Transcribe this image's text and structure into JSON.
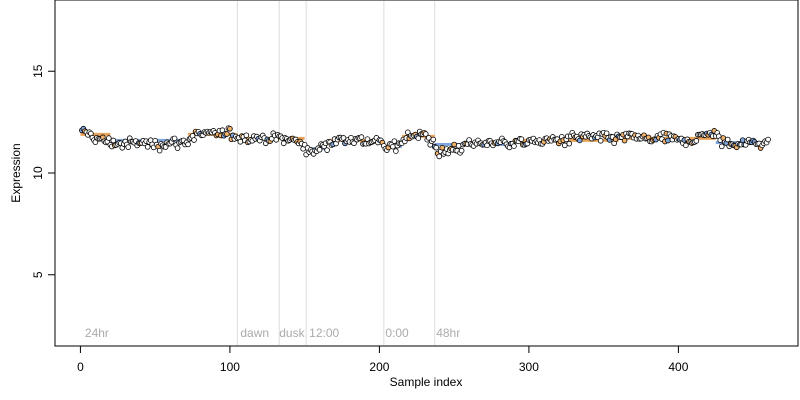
{
  "chart_data": {
    "type": "scatter",
    "xlabel": "Sample index",
    "ylabel": "Expression",
    "xlim": [
      -17,
      480
    ],
    "ylim": [
      1.5,
      18.5
    ],
    "x_ticks": [
      0,
      100,
      200,
      300,
      400
    ],
    "y_ticks": [
      5,
      10,
      15
    ],
    "grid": false,
    "legend": "none",
    "colors": {
      "point_fill_light": "#f4b36b",
      "point_fill_dark": "#7fa6dc",
      "point_fill_default": "#ffffff",
      "point_stroke": "#000000",
      "fit_line_light": "#e8a35a",
      "fit_line_dark": "#7fa6dc",
      "divider": "#dddddd",
      "phase_label": "#aaaaaa"
    },
    "phase_dividers": [
      105,
      133,
      151,
      203,
      237
    ],
    "phase_labels": [
      {
        "text": "24hr",
        "x": 3
      },
      {
        "text": "dawn",
        "x": 107
      },
      {
        "text": "dusk",
        "x": 133
      },
      {
        "text": "12:00",
        "x": 153
      },
      {
        "text": "0:00",
        "x": 204
      },
      {
        "text": "48hr",
        "x": 238
      }
    ],
    "fit_segments": [
      {
        "x0": 0,
        "x1": 20,
        "y": 11.9,
        "tone": "light"
      },
      {
        "x0": 20,
        "x1": 72,
        "y": 11.6,
        "tone": "dark"
      },
      {
        "x0": 72,
        "x1": 105,
        "y": 11.9,
        "tone": "light"
      },
      {
        "x0": 105,
        "x1": 150,
        "y": 11.7,
        "tone": "light"
      },
      {
        "x0": 150,
        "x1": 165,
        "y": 11.2,
        "tone": "dark"
      },
      {
        "x0": 165,
        "x1": 202,
        "y": 11.6,
        "tone": "light"
      },
      {
        "x0": 202,
        "x1": 215,
        "y": 11.3,
        "tone": "dark"
      },
      {
        "x0": 215,
        "x1": 237,
        "y": 11.8,
        "tone": "light"
      },
      {
        "x0": 237,
        "x1": 290,
        "y": 11.4,
        "tone": "dark"
      },
      {
        "x0": 290,
        "x1": 360,
        "y": 11.6,
        "tone": "light"
      },
      {
        "x0": 360,
        "x1": 425,
        "y": 11.7,
        "tone": "light"
      },
      {
        "x0": 425,
        "x1": 460,
        "y": 11.5,
        "tone": "dark"
      }
    ],
    "trend_knots": [
      [
        0,
        11.9
      ],
      [
        5,
        12.0
      ],
      [
        10,
        11.7
      ],
      [
        20,
        11.5
      ],
      [
        30,
        11.4
      ],
      [
        40,
        11.5
      ],
      [
        50,
        11.4
      ],
      [
        60,
        11.5
      ],
      [
        70,
        11.5
      ],
      [
        75,
        11.8
      ],
      [
        80,
        11.9
      ],
      [
        90,
        11.9
      ],
      [
        100,
        11.9
      ],
      [
        105,
        11.8
      ],
      [
        120,
        11.7
      ],
      [
        133,
        11.7
      ],
      [
        140,
        11.7
      ],
      [
        145,
        11.5
      ],
      [
        150,
        11.3
      ],
      [
        155,
        11.0
      ],
      [
        165,
        11.5
      ],
      [
        180,
        11.7
      ],
      [
        190,
        11.6
      ],
      [
        200,
        11.5
      ],
      [
        205,
        11.2
      ],
      [
        210,
        11.3
      ],
      [
        215,
        11.6
      ],
      [
        220,
        11.9
      ],
      [
        230,
        11.8
      ],
      [
        237,
        11.5
      ],
      [
        240,
        10.9
      ],
      [
        250,
        11.2
      ],
      [
        260,
        11.4
      ],
      [
        270,
        11.5
      ],
      [
        280,
        11.5
      ],
      [
        290,
        11.5
      ],
      [
        300,
        11.5
      ],
      [
        310,
        11.6
      ],
      [
        320,
        11.6
      ],
      [
        330,
        11.7
      ],
      [
        340,
        11.8
      ],
      [
        350,
        11.7
      ],
      [
        360,
        11.7
      ],
      [
        370,
        11.8
      ],
      [
        380,
        11.6
      ],
      [
        390,
        11.7
      ],
      [
        400,
        11.6
      ],
      [
        410,
        11.6
      ],
      [
        420,
        12.0
      ],
      [
        425,
        11.8
      ],
      [
        430,
        11.5
      ],
      [
        440,
        11.4
      ],
      [
        450,
        11.5
      ],
      [
        460,
        11.5
      ]
    ],
    "point_count": 460,
    "noise_sd": 0.16
  }
}
